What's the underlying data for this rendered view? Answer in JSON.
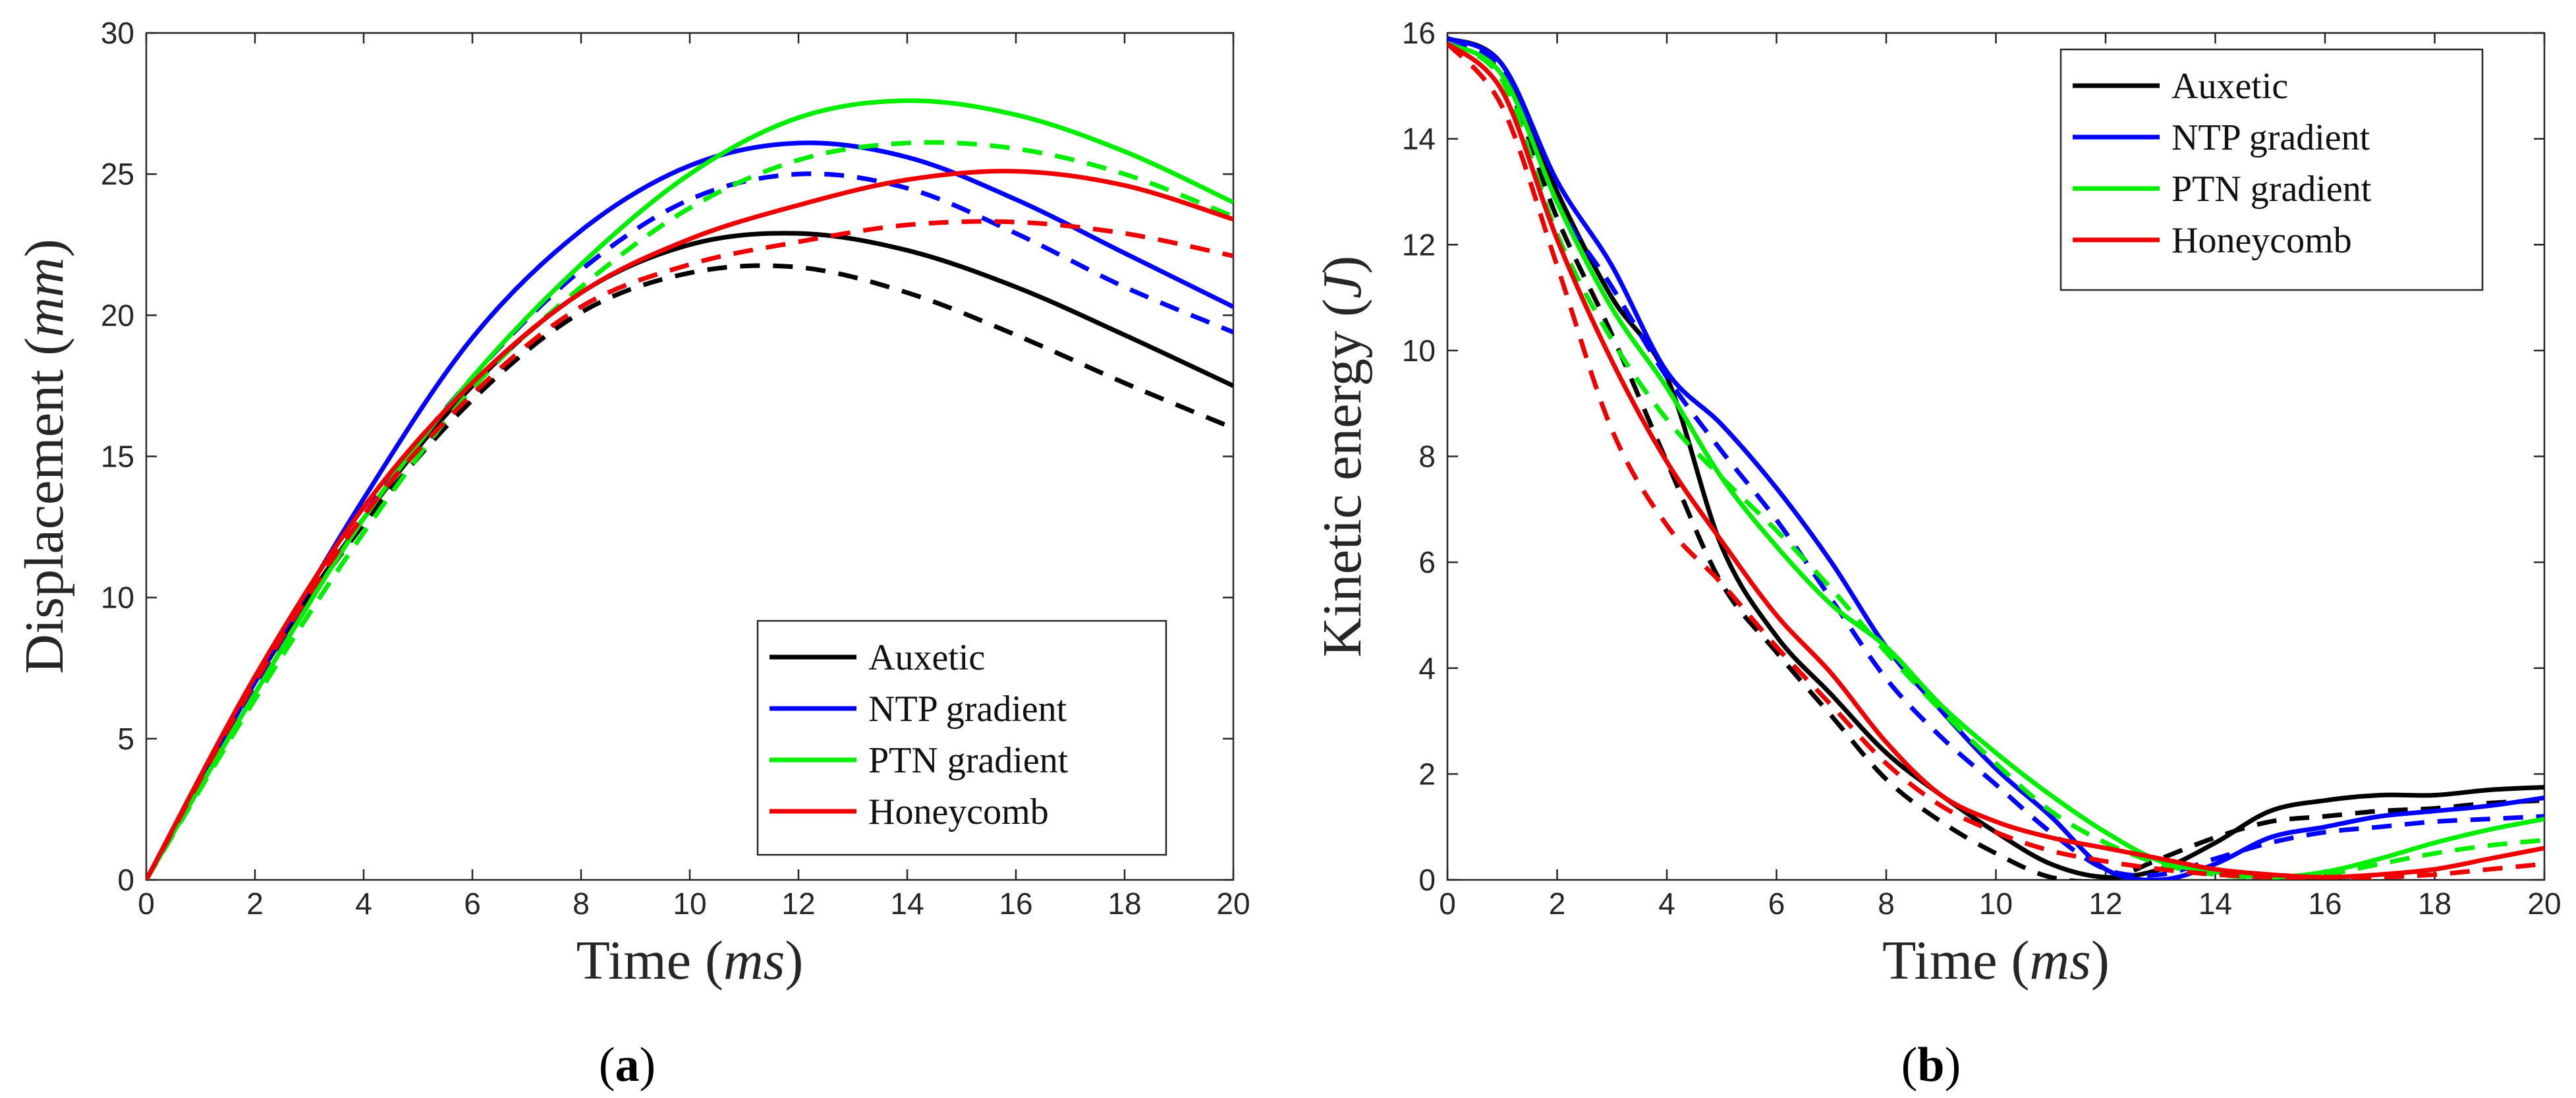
{
  "chart_data": [
    {
      "type": "line",
      "caption": "a",
      "xlabel": "Time",
      "xlabel_unit": "ms",
      "ylabel": "Displacement",
      "ylabel_unit": "mm",
      "xlim": [
        0,
        20
      ],
      "ylim": [
        0,
        30
      ],
      "xticks": [
        0,
        2,
        4,
        6,
        8,
        10,
        12,
        14,
        16,
        18,
        20
      ],
      "yticks": [
        0,
        5,
        10,
        15,
        20,
        25,
        30
      ],
      "legend": {
        "position": "bottom-right",
        "entries": [
          {
            "label": "Auxetic",
            "color": "#000000"
          },
          {
            "label": "NTP gradient",
            "color": "#0000ff"
          },
          {
            "label": "PTN gradient",
            "color": "#00ee00"
          },
          {
            "label": "Honeycomb",
            "color": "#ee0000"
          }
        ]
      },
      "x": [
        0,
        2,
        4,
        6,
        8,
        10,
        12,
        14,
        16,
        18,
        20
      ],
      "series": [
        {
          "name": "Auxetic",
          "style": "solid",
          "color": "#000000",
          "values": [
            0,
            7.0,
            12.8,
            17.5,
            20.8,
            22.5,
            22.9,
            22.3,
            21.0,
            19.3,
            17.5
          ]
        },
        {
          "name": "Auxetic",
          "style": "dashed",
          "color": "#000000",
          "values": [
            0,
            7.0,
            12.6,
            17.0,
            20.1,
            21.5,
            21.7,
            20.8,
            19.3,
            17.6,
            16.0
          ]
        },
        {
          "name": "NTP gradient",
          "style": "solid",
          "color": "#0000ff",
          "values": [
            0,
            7.0,
            13.5,
            19.2,
            23.0,
            25.3,
            26.1,
            25.6,
            24.1,
            22.2,
            20.3
          ]
        },
        {
          "name": "NTP gradient",
          "style": "dashed",
          "color": "#0000ff",
          "values": [
            0,
            6.9,
            12.9,
            17.8,
            21.6,
            24.1,
            25.0,
            24.5,
            22.9,
            21.0,
            19.4
          ]
        },
        {
          "name": "PTN gradient",
          "style": "solid",
          "color": "#00ee00",
          "values": [
            0,
            6.6,
            12.8,
            17.8,
            21.8,
            25.0,
            27.0,
            27.6,
            27.1,
            25.8,
            24.0
          ]
        },
        {
          "name": "PTN gradient",
          "style": "dashed",
          "color": "#00ee00",
          "values": [
            0,
            6.4,
            12.3,
            17.4,
            21.0,
            23.8,
            25.5,
            26.1,
            25.9,
            25.0,
            23.5
          ]
        },
        {
          "name": "Honeycomb",
          "style": "solid",
          "color": "#ee0000",
          "values": [
            0,
            7.2,
            13.2,
            17.6,
            20.8,
            22.7,
            23.9,
            24.8,
            25.1,
            24.6,
            23.4
          ]
        },
        {
          "name": "Honeycomb",
          "style": "dashed",
          "color": "#ee0000",
          "values": [
            0,
            7.0,
            12.9,
            17.2,
            20.3,
            21.8,
            22.6,
            23.2,
            23.3,
            22.9,
            22.1
          ]
        }
      ]
    },
    {
      "type": "line",
      "caption": "b",
      "xlabel": "Time",
      "xlabel_unit": "ms",
      "ylabel": "Kinetic energy",
      "ylabel_unit": "J",
      "xlim": [
        0,
        20
      ],
      "ylim": [
        0,
        16
      ],
      "xticks": [
        0,
        2,
        4,
        6,
        8,
        10,
        12,
        14,
        16,
        18,
        20
      ],
      "yticks": [
        0,
        2,
        4,
        6,
        8,
        10,
        12,
        14,
        16
      ],
      "legend": {
        "position": "top-right",
        "entries": [
          {
            "label": "Auxetic",
            "color": "#000000"
          },
          {
            "label": "NTP gradient",
            "color": "#0000ff"
          },
          {
            "label": "PTN gradient",
            "color": "#00ee00"
          },
          {
            "label": "Honeycomb",
            "color": "#ee0000"
          }
        ]
      },
      "x": [
        0,
        1,
        2,
        3,
        4,
        5,
        6,
        7,
        8,
        9,
        10,
        11,
        12,
        13,
        14,
        15,
        16,
        17,
        18,
        19,
        20
      ],
      "series": [
        {
          "name": "Auxetic",
          "style": "solid",
          "color": "#000000",
          "values": [
            15.9,
            15.4,
            13.0,
            11.0,
            9.5,
            6.3,
            4.6,
            3.5,
            2.4,
            1.6,
            0.9,
            0.3,
            0.05,
            0.2,
            0.7,
            1.3,
            1.5,
            1.6,
            1.6,
            1.7,
            1.75
          ]
        },
        {
          "name": "Auxetic",
          "style": "dashed",
          "color": "#000000",
          "values": [
            15.8,
            15.2,
            12.5,
            10.3,
            7.9,
            5.6,
            4.3,
            3.1,
            1.9,
            1.1,
            0.5,
            0.05,
            0.0,
            0.4,
            0.8,
            1.1,
            1.2,
            1.3,
            1.35,
            1.45,
            1.5
          ]
        },
        {
          "name": "NTP gradient",
          "style": "solid",
          "color": "#0000ff",
          "values": [
            15.9,
            15.4,
            13.2,
            11.6,
            9.6,
            8.6,
            7.4,
            6.0,
            4.4,
            3.2,
            2.1,
            1.2,
            0.2,
            0.0,
            0.3,
            0.8,
            1.0,
            1.2,
            1.3,
            1.4,
            1.55
          ]
        },
        {
          "name": "NTP gradient",
          "style": "dashed",
          "color": "#0000ff",
          "values": [
            15.8,
            15.3,
            12.8,
            11.2,
            9.5,
            8.1,
            6.8,
            5.3,
            3.8,
            2.7,
            1.8,
            0.9,
            0.2,
            0.1,
            0.4,
            0.7,
            0.9,
            1.0,
            1.1,
            1.15,
            1.2
          ]
        },
        {
          "name": "PTN gradient",
          "style": "solid",
          "color": "#00ee00",
          "values": [
            15.8,
            15.2,
            12.8,
            10.8,
            9.3,
            7.6,
            6.3,
            5.2,
            4.4,
            3.3,
            2.4,
            1.6,
            0.9,
            0.35,
            0.15,
            0.05,
            0.15,
            0.4,
            0.7,
            0.95,
            1.15
          ]
        },
        {
          "name": "PTN gradient",
          "style": "dashed",
          "color": "#00ee00",
          "values": [
            15.8,
            15.1,
            12.2,
            10.2,
            8.7,
            7.6,
            6.6,
            5.5,
            4.3,
            3.2,
            2.2,
            1.3,
            0.7,
            0.3,
            0.1,
            0.05,
            0.1,
            0.3,
            0.5,
            0.65,
            0.75
          ]
        },
        {
          "name": "Honeycomb",
          "style": "solid",
          "color": "#ee0000",
          "values": [
            15.8,
            14.9,
            12.1,
            9.8,
            7.9,
            6.4,
            5.0,
            3.9,
            2.6,
            1.6,
            1.1,
            0.8,
            0.6,
            0.4,
            0.2,
            0.1,
            0.05,
            0.1,
            0.2,
            0.4,
            0.6
          ]
        },
        {
          "name": "Honeycomb",
          "style": "dashed",
          "color": "#ee0000",
          "values": [
            15.8,
            14.6,
            11.6,
            8.5,
            6.7,
            5.6,
            4.4,
            3.3,
            2.2,
            1.4,
            0.9,
            0.55,
            0.35,
            0.2,
            0.1,
            0.05,
            0.05,
            0.05,
            0.1,
            0.2,
            0.3
          ]
        }
      ]
    }
  ]
}
